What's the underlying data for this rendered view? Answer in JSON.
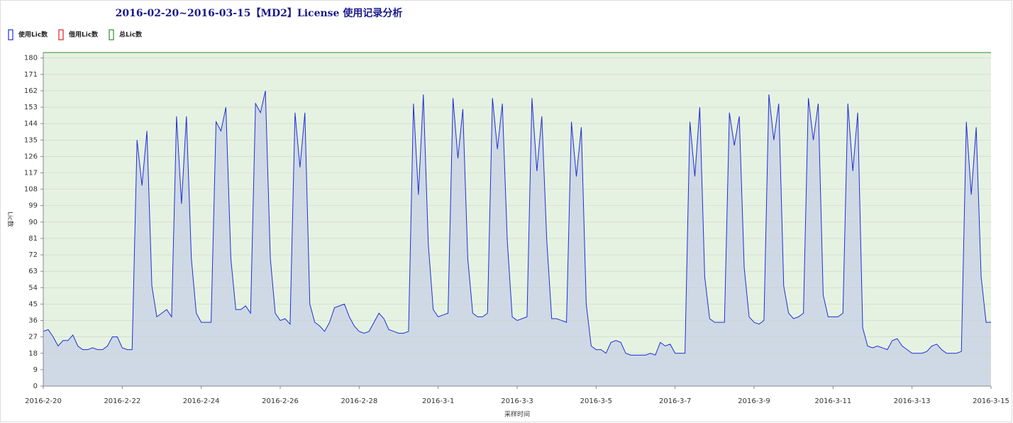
{
  "chart_data": {
    "type": "area",
    "title": "2016-02-20~2016-03-15【MD2】License 使用记录分析",
    "x_label": "采样时间",
    "y_label": "Lic数",
    "xlim": [
      0,
      24
    ],
    "xticks": [
      {
        "value": 0,
        "label": "2016-2-20"
      },
      {
        "value": 2,
        "label": "2016-2-22"
      },
      {
        "value": 4,
        "label": "2016-2-24"
      },
      {
        "value": 6,
        "label": "2016-2-26"
      },
      {
        "value": 8,
        "label": "2016-2-28"
      },
      {
        "value": 10,
        "label": "2016-3-1"
      },
      {
        "value": 12,
        "label": "2016-3-3"
      },
      {
        "value": 14,
        "label": "2016-3-5"
      },
      {
        "value": 16,
        "label": "2016-3-7"
      },
      {
        "value": 18,
        "label": "2016-3-9"
      },
      {
        "value": 20,
        "label": "2016-3-11"
      },
      {
        "value": 22,
        "label": "2016-3-13"
      },
      {
        "value": 24,
        "label": "2016-3-15"
      }
    ],
    "ylim": [
      0,
      183
    ],
    "yticks": [
      0,
      9,
      18,
      27,
      36,
      45,
      54,
      63,
      72,
      81,
      90,
      99,
      108,
      117,
      126,
      135,
      144,
      153,
      162,
      171,
      180
    ],
    "grid": true,
    "legend": "top-left",
    "series": [
      {
        "name": "总Lic数",
        "color": "#2e8b2e",
        "fill": "#e6f2e1",
        "area": true,
        "x": [
          0,
          24
        ],
        "values": [
          183,
          183
        ]
      },
      {
        "name": "使用Lic数",
        "color": "#1f2fd6",
        "fill": "#cfd9e5",
        "area": true,
        "x": [
          0,
          0.125,
          0.25,
          0.375,
          0.5,
          0.625,
          0.75,
          0.875,
          1,
          1.125,
          1.25,
          1.375,
          1.5,
          1.625,
          1.75,
          1.875,
          2,
          2.125,
          2.25,
          2.375,
          2.5,
          2.625,
          2.75,
          2.875,
          3,
          3.125,
          3.25,
          3.375,
          3.5,
          3.625,
          3.75,
          3.875,
          4,
          4.125,
          4.25,
          4.375,
          4.5,
          4.625,
          4.75,
          4.875,
          5,
          5.125,
          5.25,
          5.375,
          5.5,
          5.625,
          5.75,
          5.875,
          6,
          6.125,
          6.25,
          6.375,
          6.5,
          6.625,
          6.75,
          6.875,
          7,
          7.125,
          7.25,
          7.375,
          7.5,
          7.625,
          7.75,
          7.875,
          8,
          8.125,
          8.25,
          8.375,
          8.5,
          8.625,
          8.75,
          8.875,
          9,
          9.125,
          9.25,
          9.375,
          9.5,
          9.625,
          9.75,
          9.875,
          10,
          10.125,
          10.25,
          10.375,
          10.5,
          10.625,
          10.75,
          10.875,
          11,
          11.125,
          11.25,
          11.375,
          11.5,
          11.625,
          11.75,
          11.875,
          12,
          12.125,
          12.25,
          12.375,
          12.5,
          12.625,
          12.75,
          12.875,
          13,
          13.125,
          13.25,
          13.375,
          13.5,
          13.625,
          13.75,
          13.875,
          14,
          14.125,
          14.25,
          14.375,
          14.5,
          14.625,
          14.75,
          14.875,
          15,
          15.125,
          15.25,
          15.375,
          15.5,
          15.625,
          15.75,
          15.875,
          16,
          16.125,
          16.25,
          16.375,
          16.5,
          16.625,
          16.75,
          16.875,
          17,
          17.125,
          17.25,
          17.375,
          17.5,
          17.625,
          17.75,
          17.875,
          18,
          18.125,
          18.25,
          18.375,
          18.5,
          18.625,
          18.75,
          18.875,
          19,
          19.125,
          19.25,
          19.375,
          19.5,
          19.625,
          19.75,
          19.875,
          20,
          20.125,
          20.25,
          20.375,
          20.5,
          20.625,
          20.75,
          20.875,
          21,
          21.125,
          21.25,
          21.375,
          21.5,
          21.625,
          21.75,
          21.875,
          22,
          22.125,
          22.25,
          22.375,
          22.5,
          22.625,
          22.75,
          22.875,
          23,
          23.125,
          23.25,
          23.375,
          23.5,
          23.625,
          23.75,
          23.875,
          24
        ],
        "values": [
          30,
          31,
          27,
          22,
          25,
          25,
          28,
          22,
          20,
          20,
          21,
          20,
          20,
          22,
          27,
          27,
          21,
          20,
          20,
          135,
          110,
          140,
          55,
          38,
          40,
          42,
          38,
          148,
          100,
          148,
          70,
          40,
          35,
          35,
          35,
          145,
          140,
          153,
          70,
          42,
          42,
          44,
          40,
          155,
          150,
          162,
          70,
          40,
          36,
          37,
          34,
          150,
          120,
          150,
          45,
          35,
          33,
          30,
          35,
          43,
          44,
          45,
          38,
          33,
          30,
          29,
          30,
          35,
          40,
          37,
          31,
          30,
          29,
          29,
          30,
          155,
          105,
          160,
          78,
          42,
          38,
          39,
          40,
          158,
          125,
          152,
          70,
          40,
          38,
          38,
          40,
          158,
          130,
          155,
          80,
          38,
          36,
          37,
          38,
          158,
          118,
          148,
          80,
          37,
          37,
          36,
          35,
          145,
          115,
          142,
          45,
          22,
          20,
          20,
          18,
          24,
          25,
          24,
          18,
          17,
          17,
          17,
          17,
          18,
          17,
          24,
          22,
          23,
          18,
          18,
          18,
          145,
          115,
          153,
          60,
          37,
          35,
          35,
          35,
          150,
          132,
          148,
          65,
          38,
          35,
          34,
          36,
          160,
          135,
          155,
          55,
          40,
          37,
          38,
          40,
          158,
          135,
          155,
          50,
          38,
          38,
          38,
          40,
          155,
          118,
          150,
          32,
          22,
          21,
          22,
          21,
          20,
          25,
          26,
          22,
          20,
          18,
          18,
          18,
          19,
          22,
          23,
          20,
          18,
          18,
          18,
          19,
          145,
          105,
          142,
          60,
          35,
          35
        ]
      },
      {
        "name": "借用Lic数",
        "color": "#e02020",
        "area": false,
        "x": [
          0,
          24
        ],
        "values": [
          0,
          0
        ]
      }
    ]
  }
}
